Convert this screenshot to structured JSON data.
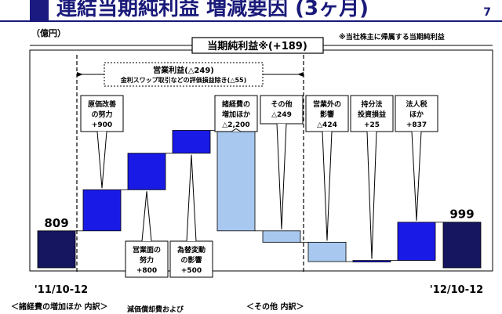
{
  "page": {
    "title": "連結当期純利益 増減要因 (3ヶ月)",
    "page_number": "7",
    "unit": "（億円）",
    "note": "※当社株主に帰属する当期純利益",
    "footer_left": "＜諸経費の増加ほか 内訳＞",
    "footer_mid": "減価償却費および",
    "footer_right": "＜その他 内訳＞"
  },
  "chart_data": {
    "type": "waterfall",
    "title": "当期純利益※(+189)",
    "group_label": "営業利益(△249)",
    "group_sublabel": "金利スワップ取引などの評価損益除き(△55)",
    "x_start": "'11/10-12",
    "x_end": "'12/10-12",
    "start_value": 809,
    "end_value": 999,
    "steps": [
      {
        "label_lines": [
          "原価改善",
          "の努力",
          "+900"
        ],
        "value": 900,
        "color": "#1a1ae6"
      },
      {
        "label_lines": [
          "営業面の",
          "努力",
          "+800"
        ],
        "value": 800,
        "color": "#1a1ae6"
      },
      {
        "label_lines": [
          "為替変動",
          "の影響",
          "+500"
        ],
        "value": 500,
        "color": "#1a1ae6"
      },
      {
        "label_lines": [
          "諸経費の",
          "増加ほか",
          "△2,200"
        ],
        "value": -2200,
        "color": "#a8c8f0"
      },
      {
        "label_lines": [
          "その他",
          "△249"
        ],
        "value": -249,
        "color": "#a8c8f0"
      },
      {
        "label_lines": [
          "営業外の",
          "影響",
          "△424"
        ],
        "value": -424,
        "color": "#a8c8f0"
      },
      {
        "label_lines": [
          "持分法",
          "投資損益",
          "+25"
        ],
        "value": 25,
        "color": "#1a1ae6"
      },
      {
        "label_lines": [
          "法人税",
          "ほか",
          "+837"
        ],
        "value": 837,
        "color": "#1a1ae6"
      }
    ],
    "colors": {
      "total": "#151560",
      "increase": "#1a1ae6",
      "decrease": "#a8c8f0"
    }
  }
}
